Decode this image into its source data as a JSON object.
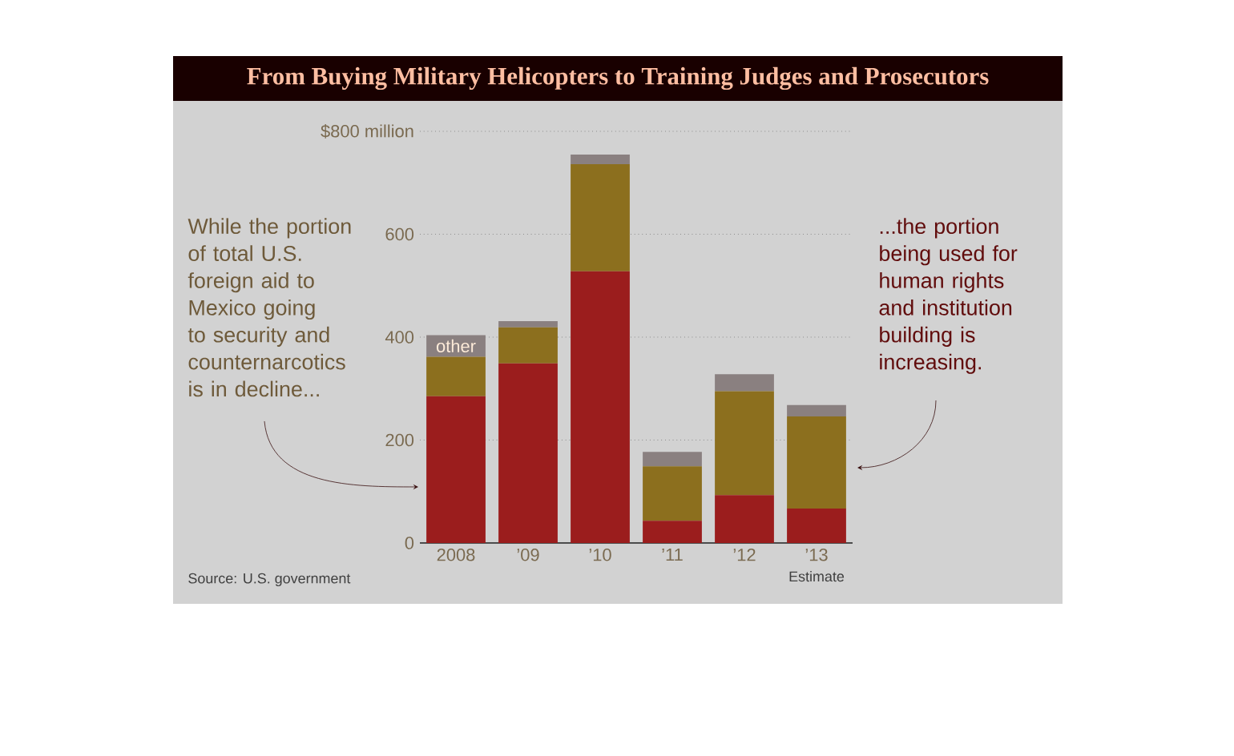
{
  "chart_data": {
    "type": "bar",
    "title": "From Buying Military Helicopters to Training Judges and Prosecutors",
    "categories": [
      "2008",
      "’09",
      "’10",
      "’11",
      "’12",
      "’13"
    ],
    "stacked": true,
    "series": [
      {
        "color": "#9b1d1d",
        "values": [
          285,
          349,
          528,
          43,
          93,
          67
        ]
      },
      {
        "color": "#8c6f1e",
        "values": [
          77,
          70,
          208,
          106,
          202,
          179
        ]
      },
      {
        "name": "other",
        "color": "#8a8080",
        "values": [
          42,
          12,
          19,
          28,
          33,
          22
        ]
      }
    ],
    "ylim": [
      0,
      800
    ],
    "yticks": [
      0,
      200,
      400,
      600,
      {
        "value": 800,
        "label": "$800 million"
      }
    ],
    "grid": "y",
    "annotations": [
      "While the portion of total U.S. foreign aid to Mexico going to security and counternarcotics is in decline...",
      "...the portion being used for human rights and institution building is increasing.",
      "Estimate",
      "Source: U.S. government"
    ]
  }
}
